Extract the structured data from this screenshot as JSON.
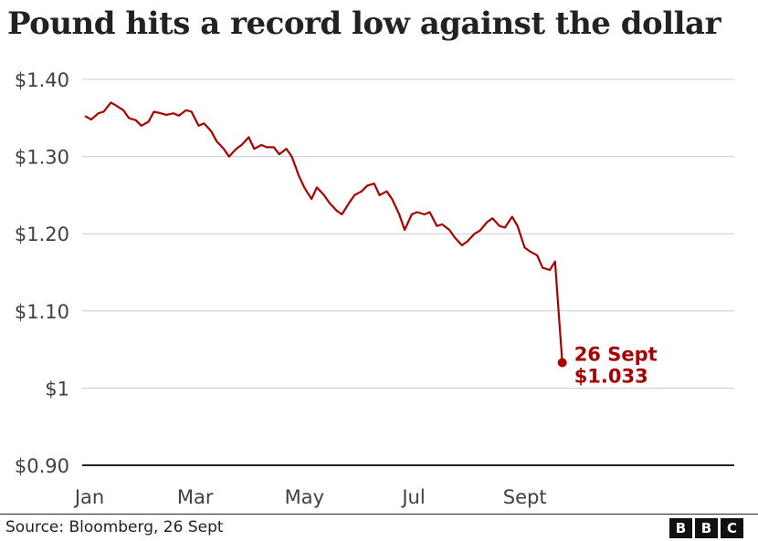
{
  "title": "Pound hits a record low against the dollar",
  "source": "Source: Bloomberg, 26 Sept",
  "logo": {
    "letters": [
      "B",
      "B",
      "C"
    ]
  },
  "colors": {
    "line": "#a80000",
    "grid": "#cccccc",
    "baseline": "#222222",
    "text": "#404040"
  },
  "chart_data": {
    "type": "line",
    "title": "Pound hits a record low against the dollar",
    "ylim": [
      0.9,
      1.4
    ],
    "yticks": [
      1.4,
      1.3,
      1.2,
      1.1,
      1.0,
      0.9
    ],
    "ytick_labels": [
      "$1.40",
      "$1.30",
      "$1.20",
      "$1.10",
      "$1",
      "$0.90"
    ],
    "xlim": [
      "2022-01-01",
      "2022-12-31"
    ],
    "xticks": [
      "2022-01-01",
      "2022-03-01",
      "2022-05-01",
      "2022-07-01",
      "2022-09-01"
    ],
    "xtick_labels": [
      "Jan",
      "Mar",
      "May",
      "Jul",
      "Sept"
    ],
    "grid": true,
    "series": [
      {
        "color": "#a80000",
        "points": [
          [
            "2022-01-03",
            1.352
          ],
          [
            "2022-01-06",
            1.348
          ],
          [
            "2022-01-10",
            1.356
          ],
          [
            "2022-01-13",
            1.358
          ],
          [
            "2022-01-17",
            1.37
          ],
          [
            "2022-01-20",
            1.366
          ],
          [
            "2022-01-24",
            1.36
          ],
          [
            "2022-01-27",
            1.35
          ],
          [
            "2022-01-31",
            1.347
          ],
          [
            "2022-02-03",
            1.34
          ],
          [
            "2022-02-07",
            1.345
          ],
          [
            "2022-02-10",
            1.358
          ],
          [
            "2022-02-14",
            1.356
          ],
          [
            "2022-02-17",
            1.354
          ],
          [
            "2022-02-21",
            1.356
          ],
          [
            "2022-02-24",
            1.353
          ],
          [
            "2022-02-28",
            1.36
          ],
          [
            "2022-03-03",
            1.358
          ],
          [
            "2022-03-07",
            1.34
          ],
          [
            "2022-03-10",
            1.343
          ],
          [
            "2022-03-14",
            1.333
          ],
          [
            "2022-03-17",
            1.32
          ],
          [
            "2022-03-21",
            1.31
          ],
          [
            "2022-03-24",
            1.3
          ],
          [
            "2022-03-28",
            1.31
          ],
          [
            "2022-03-31",
            1.315
          ],
          [
            "2022-04-04",
            1.325
          ],
          [
            "2022-04-07",
            1.31
          ],
          [
            "2022-04-11",
            1.315
          ],
          [
            "2022-04-14",
            1.312
          ],
          [
            "2022-04-18",
            1.312
          ],
          [
            "2022-04-21",
            1.303
          ],
          [
            "2022-04-25",
            1.31
          ],
          [
            "2022-04-28",
            1.3
          ],
          [
            "2022-05-02",
            1.275
          ],
          [
            "2022-05-05",
            1.26
          ],
          [
            "2022-05-09",
            1.245
          ],
          [
            "2022-05-12",
            1.26
          ],
          [
            "2022-05-16",
            1.25
          ],
          [
            "2022-05-19",
            1.24
          ],
          [
            "2022-05-23",
            1.23
          ],
          [
            "2022-05-26",
            1.225
          ],
          [
            "2022-05-30",
            1.24
          ],
          [
            "2022-06-02",
            1.25
          ],
          [
            "2022-06-06",
            1.255
          ],
          [
            "2022-06-09",
            1.262
          ],
          [
            "2022-06-13",
            1.265
          ],
          [
            "2022-06-16",
            1.25
          ],
          [
            "2022-06-20",
            1.255
          ],
          [
            "2022-06-23",
            1.245
          ],
          [
            "2022-06-27",
            1.225
          ],
          [
            "2022-06-30",
            1.205
          ],
          [
            "2022-07-04",
            1.225
          ],
          [
            "2022-07-07",
            1.228
          ],
          [
            "2022-07-11",
            1.225
          ],
          [
            "2022-07-14",
            1.228
          ],
          [
            "2022-07-18",
            1.21
          ],
          [
            "2022-07-21",
            1.212
          ],
          [
            "2022-07-25",
            1.205
          ],
          [
            "2022-07-28",
            1.195
          ],
          [
            "2022-08-01",
            1.185
          ],
          [
            "2022-08-04",
            1.19
          ],
          [
            "2022-08-08",
            1.2
          ],
          [
            "2022-08-11",
            1.204
          ],
          [
            "2022-08-15",
            1.215
          ],
          [
            "2022-08-18",
            1.22
          ],
          [
            "2022-08-22",
            1.21
          ],
          [
            "2022-08-25",
            1.208
          ],
          [
            "2022-08-29",
            1.222
          ],
          [
            "2022-09-01",
            1.21
          ],
          [
            "2022-09-05",
            1.182
          ],
          [
            "2022-09-08",
            1.177
          ],
          [
            "2022-09-12",
            1.172
          ],
          [
            "2022-09-15",
            1.156
          ],
          [
            "2022-09-19",
            1.153
          ],
          [
            "2022-09-22",
            1.164
          ],
          [
            "2022-09-23",
            1.13
          ],
          [
            "2022-09-26",
            1.033
          ]
        ]
      }
    ],
    "annotations": [
      {
        "date": "2022-09-26",
        "value": 1.033,
        "lines": [
          "26 Sept",
          "$1.033"
        ]
      }
    ]
  }
}
